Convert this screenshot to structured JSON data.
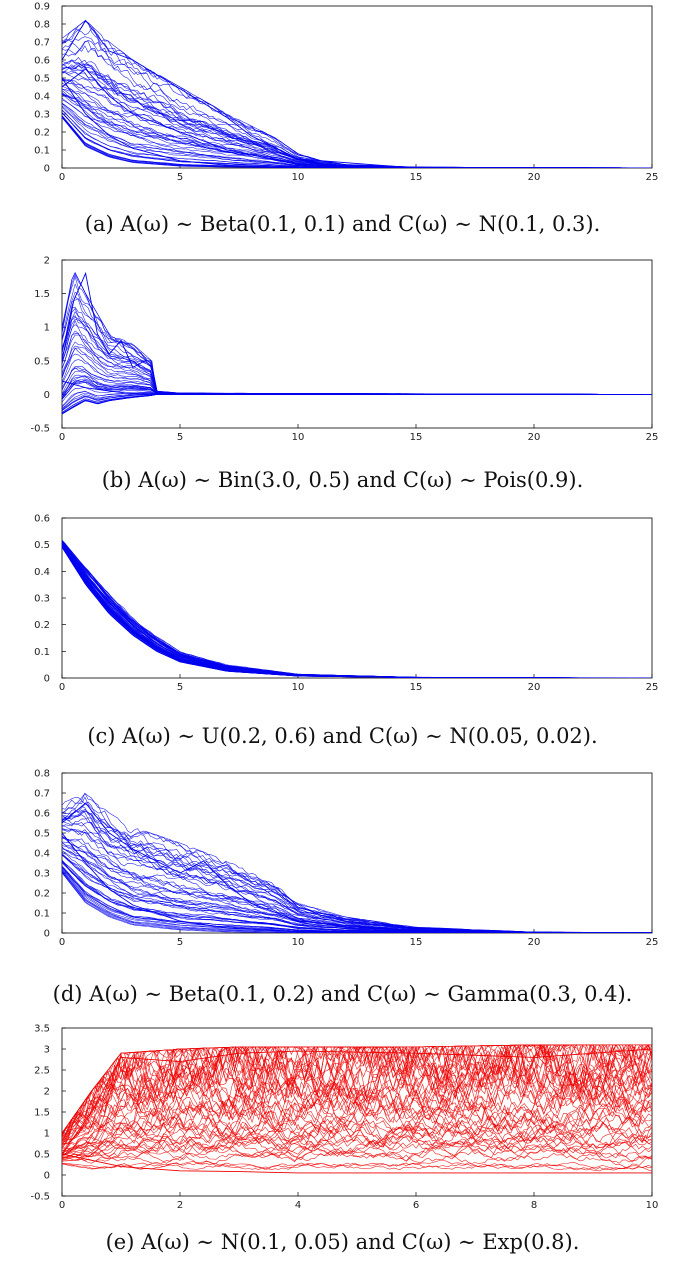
{
  "chart_data": [
    {
      "type": "line",
      "caption": "(a) A(ω) ∼ Beta(0.1, 0.1) and C(ω) ∼ N(0.1, 0.3).",
      "xlim": [
        0,
        25
      ],
      "ylim": [
        0,
        0.9
      ],
      "xticks": [
        0,
        5,
        10,
        15,
        20,
        25
      ],
      "yticks": [
        0,
        0.1,
        0.2,
        0.3,
        0.4,
        0.5,
        0.6,
        0.7,
        0.8,
        0.9
      ],
      "xtick_labels": [
        "0",
        "5",
        "10",
        "15",
        "20",
        "25"
      ],
      "ytick_labels": [
        "0",
        "0.1",
        "0.2",
        "0.3",
        "0.4",
        "0.5",
        "0.6",
        "0.7",
        "0.8",
        "0.9"
      ],
      "color": "#0000ee",
      "envelope": {
        "x": [
          0,
          1,
          2,
          3,
          5,
          7,
          9,
          10,
          11,
          12,
          15,
          25
        ],
        "lower": [
          0.28,
          0.12,
          0.06,
          0.03,
          0.01,
          0.005,
          0.002,
          0.001,
          0.0,
          0.0,
          0.0,
          0.0
        ],
        "upper": [
          0.72,
          0.82,
          0.7,
          0.6,
          0.45,
          0.3,
          0.17,
          0.08,
          0.04,
          0.02,
          0.005,
          0.001
        ]
      },
      "representative_series": [
        {
          "x": [
            0,
            1,
            2,
            3,
            5,
            7,
            10,
            15,
            25
          ],
          "values": [
            0.5,
            0.3,
            0.18,
            0.11,
            0.04,
            0.015,
            0.003,
            0.0,
            0.0
          ]
        },
        {
          "x": [
            0,
            1,
            2,
            3,
            5,
            7,
            10,
            15,
            25
          ],
          "values": [
            0.45,
            0.55,
            0.4,
            0.3,
            0.2,
            0.1,
            0.02,
            0.0,
            0.0
          ]
        },
        {
          "x": [
            0,
            1,
            2,
            3,
            5,
            7,
            8,
            10,
            15,
            25
          ],
          "values": [
            0.6,
            0.82,
            0.65,
            0.6,
            0.44,
            0.28,
            0.18,
            0.05,
            0.0,
            0.0
          ]
        }
      ]
    },
    {
      "type": "line",
      "caption": "(b) A(ω) ∼ Bin(3.0, 0.5) and C(ω) ∼ Pois(0.9).",
      "xlim": [
        0,
        25
      ],
      "ylim": [
        -0.5,
        2
      ],
      "xticks": [
        0,
        5,
        10,
        15,
        20,
        25
      ],
      "yticks": [
        -0.5,
        0,
        0.5,
        1,
        1.5,
        2
      ],
      "xtick_labels": [
        "0",
        "5",
        "10",
        "15",
        "20",
        "25"
      ],
      "ytick_labels": [
        "-0.5",
        "0",
        "0.5",
        "1",
        "1.5",
        "2"
      ],
      "color": "#0000ee",
      "envelope": {
        "x": [
          0,
          0.5,
          1,
          1.5,
          2,
          3,
          3.8,
          4,
          5,
          25
        ],
        "lower": [
          -0.3,
          -0.2,
          -0.1,
          -0.15,
          -0.1,
          -0.05,
          -0.02,
          0,
          0,
          0
        ],
        "upper": [
          1.0,
          1.85,
          1.5,
          1.2,
          0.9,
          0.75,
          0.5,
          0.05,
          0.02,
          0
        ]
      },
      "representative_series": [
        {
          "x": [
            0,
            0.5,
            1,
            1.5,
            2,
            2.5,
            3,
            3.5,
            3.8,
            4,
            25
          ],
          "values": [
            0.5,
            1.4,
            1.8,
            0.9,
            0.6,
            0.8,
            0.4,
            0.5,
            0.5,
            0.0,
            0.0
          ]
        },
        {
          "x": [
            0,
            1,
            2,
            3,
            4,
            25
          ],
          "values": [
            0.2,
            0.1,
            0.05,
            0.01,
            0.0,
            0.0
          ]
        }
      ]
    },
    {
      "type": "line",
      "caption": "(c) A(ω) ∼ U(0.2, 0.6) and C(ω) ∼ N(0.05, 0.02).",
      "xlim": [
        0,
        25
      ],
      "ylim": [
        0,
        0.6
      ],
      "xticks": [
        0,
        5,
        10,
        15,
        20,
        25
      ],
      "yticks": [
        0,
        0.1,
        0.2,
        0.3,
        0.4,
        0.5,
        0.6
      ],
      "xtick_labels": [
        "0",
        "5",
        "10",
        "15",
        "20",
        "25"
      ],
      "ytick_labels": [
        "0",
        "0.1",
        "0.2",
        "0.3",
        "0.4",
        "0.5",
        "0.6"
      ],
      "color": "#0000ee",
      "envelope": {
        "x": [
          0,
          1,
          2,
          3,
          4,
          5,
          7,
          10,
          15,
          25
        ],
        "lower": [
          0.49,
          0.35,
          0.24,
          0.16,
          0.1,
          0.06,
          0.025,
          0.007,
          0.001,
          0.0
        ],
        "upper": [
          0.52,
          0.42,
          0.32,
          0.23,
          0.16,
          0.1,
          0.05,
          0.015,
          0.003,
          0.0
        ]
      },
      "representative_series": [
        {
          "x": [
            0,
            1,
            2,
            3,
            4,
            5,
            7,
            10,
            15,
            25
          ],
          "values": [
            0.5,
            0.38,
            0.28,
            0.2,
            0.13,
            0.08,
            0.035,
            0.01,
            0.002,
            0.0
          ]
        }
      ]
    },
    {
      "type": "line",
      "caption": "(d) A(ω) ∼ Beta(0.1, 0.2) and C(ω) ∼ Gamma(0.3, 0.4).",
      "xlim": [
        0,
        25
      ],
      "ylim": [
        0,
        0.8
      ],
      "xticks": [
        0,
        5,
        10,
        15,
        20,
        25
      ],
      "yticks": [
        0,
        0.1,
        0.2,
        0.3,
        0.4,
        0.5,
        0.6,
        0.7,
        0.8
      ],
      "xtick_labels": [
        "0",
        "5",
        "10",
        "15",
        "20",
        "25"
      ],
      "ytick_labels": [
        "0",
        "0.1",
        "0.2",
        "0.3",
        "0.4",
        "0.5",
        "0.6",
        "0.7",
        "0.8"
      ],
      "color": "#0000ee",
      "envelope": {
        "x": [
          0,
          1,
          2,
          3,
          5,
          7,
          9,
          10,
          12,
          15,
          20,
          25
        ],
        "lower": [
          0.3,
          0.15,
          0.08,
          0.04,
          0.015,
          0.005,
          0.002,
          0.001,
          0.0,
          0.0,
          0.0,
          0.0
        ],
        "upper": [
          0.65,
          0.7,
          0.6,
          0.53,
          0.45,
          0.36,
          0.25,
          0.15,
          0.08,
          0.03,
          0.005,
          0.002
        ]
      },
      "representative_series": [
        {
          "x": [
            0,
            1,
            2,
            3,
            5,
            7,
            10,
            15,
            25
          ],
          "values": [
            0.5,
            0.35,
            0.22,
            0.14,
            0.06,
            0.025,
            0.008,
            0.001,
            0.0
          ]
        },
        {
          "x": [
            0,
            1,
            2,
            3,
            5,
            6,
            7,
            8,
            10,
            15,
            25
          ],
          "values": [
            0.55,
            0.65,
            0.5,
            0.42,
            0.3,
            0.36,
            0.24,
            0.15,
            0.06,
            0.005,
            0.0
          ]
        }
      ]
    },
    {
      "type": "line",
      "caption": "(e) A(ω) ∼ N(0.1, 0.05) and C(ω) ∼ Exp(0.8).",
      "xlim": [
        0,
        10
      ],
      "ylim": [
        -0.5,
        3.5
      ],
      "xticks": [
        0,
        2,
        4,
        6,
        8,
        10
      ],
      "yticks": [
        -0.5,
        0,
        0.5,
        1,
        1.5,
        2,
        2.5,
        3,
        3.5
      ],
      "xtick_labels": [
        "0",
        "2",
        "4",
        "6",
        "8",
        "10"
      ],
      "ytick_labels": [
        "-0.5",
        "0",
        "0.5",
        "1",
        "1.5",
        "2",
        "2.5",
        "3",
        "3.5"
      ],
      "color": "#ee0000",
      "envelope": {
        "x": [
          0,
          0.5,
          1,
          2,
          3,
          4,
          6,
          8,
          10
        ],
        "lower": [
          0.2,
          0.0,
          -0.05,
          -0.05,
          -0.05,
          -0.05,
          -0.05,
          -0.05,
          -0.1
        ],
        "upper": [
          1.0,
          2.0,
          2.9,
          3.0,
          3.05,
          3.05,
          3.05,
          3.1,
          3.1
        ]
      },
      "representative_series": [
        {
          "x": [
            0,
            1,
            2,
            3,
            4,
            6,
            8,
            10
          ],
          "values": [
            0.5,
            0.2,
            0.1,
            0.08,
            0.05,
            0.05,
            0.05,
            0.05
          ]
        },
        {
          "x": [
            0,
            0.5,
            1,
            2,
            3,
            4,
            6,
            8,
            10
          ],
          "values": [
            0.5,
            1.5,
            2.8,
            2.7,
            2.9,
            2.95,
            2.9,
            2.8,
            3.0
          ]
        }
      ]
    }
  ]
}
